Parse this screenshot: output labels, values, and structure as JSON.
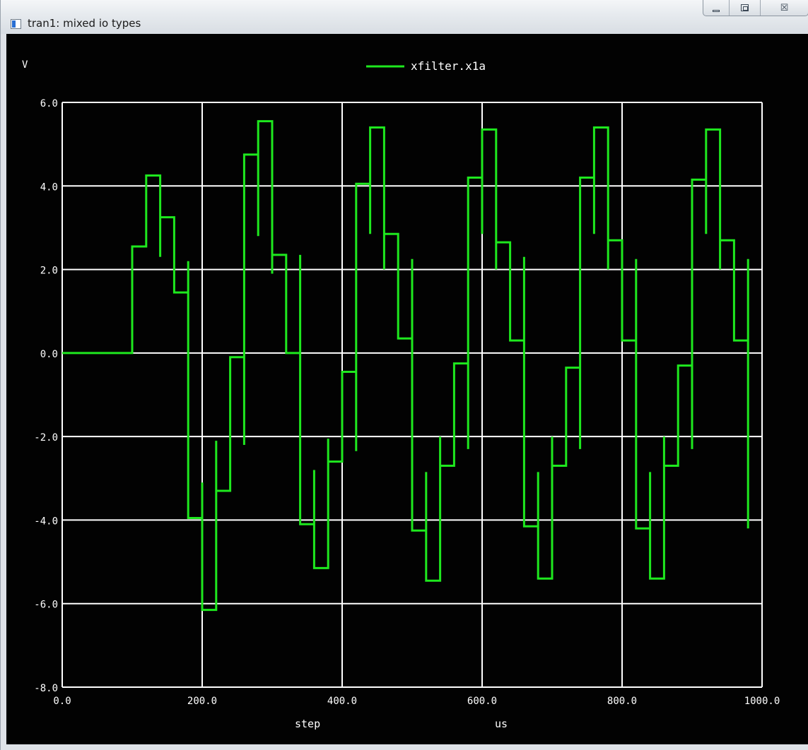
{
  "window": {
    "title": "tran1: mixed io types",
    "controls": {
      "minimize_icon": "minimize-icon",
      "maximize_icon": "restore-icon",
      "close_glyph": "☒"
    }
  },
  "chart_data": {
    "type": "line",
    "title": "",
    "ylabel": "V",
    "xlabel_left": "step",
    "xlabel_right": "us",
    "xlim": [
      0,
      1000
    ],
    "ylim": [
      -8,
      6
    ],
    "grid": true,
    "legend_position": "top-center",
    "x_ticks": [
      0,
      200,
      400,
      600,
      800,
      1000
    ],
    "x_tick_labels": [
      "0.0",
      "200.0",
      "400.0",
      "600.0",
      "800.0",
      "1000.0"
    ],
    "y_ticks": [
      6,
      4,
      2,
      0,
      -2,
      -4,
      -6,
      -8
    ],
    "y_tick_labels": [
      "6.0",
      "4.0",
      "2.0",
      "0.0",
      "-2.0",
      "-4.0",
      "-6.0",
      "-8.0"
    ],
    "series": [
      {
        "name": "xfilter.x1a",
        "color": "#1ee81e",
        "x": [
          0,
          100,
          100,
          120,
          120,
          140,
          140,
          140,
          160,
          160,
          180,
          180,
          180,
          180,
          200,
          200,
          200,
          220,
          220,
          220,
          240,
          240,
          260,
          260,
          260,
          280,
          280,
          280,
          300,
          300,
          300,
          320,
          320,
          340,
          340,
          340,
          360,
          360,
          360,
          380,
          380,
          380,
          400,
          400,
          420,
          420,
          420,
          440,
          440,
          440,
          460,
          460,
          460,
          480,
          480,
          500,
          500,
          500,
          520,
          520,
          520,
          540,
          540,
          540,
          560,
          560,
          580,
          580,
          580,
          600,
          600,
          600,
          620,
          620,
          620,
          640,
          640,
          660,
          660,
          660,
          680,
          680,
          680,
          700,
          700,
          700,
          720,
          720,
          740,
          740,
          740,
          760,
          760,
          760,
          780,
          780,
          780,
          800,
          800,
          820,
          820,
          820,
          840,
          840,
          840,
          860,
          860,
          860,
          880,
          880,
          900,
          900,
          900,
          920,
          920,
          920,
          940,
          940,
          940,
          960,
          960,
          980,
          980,
          980
        ],
        "y": [
          0,
          0,
          2.55,
          2.55,
          4.25,
          4.25,
          2.3,
          3.25,
          3.25,
          1.45,
          1.45,
          2.2,
          -3.95,
          -3.95,
          -3.95,
          -3.1,
          -6.15,
          -6.15,
          -2.1,
          -3.3,
          -3.3,
          -0.1,
          -0.1,
          -2.2,
          4.75,
          4.75,
          2.8,
          5.55,
          5.55,
          1.9,
          2.35,
          2.35,
          0,
          0,
          2.35,
          -4.1,
          -4.1,
          -2.8,
          -5.15,
          -5.15,
          -2.05,
          -2.6,
          -2.6,
          -0.45,
          -0.45,
          -2.35,
          4.05,
          4.05,
          2.85,
          5.4,
          5.4,
          2.0,
          2.85,
          2.85,
          0.35,
          0.35,
          2.25,
          -4.25,
          -4.25,
          -2.85,
          -5.45,
          -5.45,
          -2.0,
          -2.7,
          -2.7,
          -0.25,
          -0.25,
          -2.3,
          4.2,
          4.2,
          2.85,
          5.35,
          5.35,
          2.0,
          2.65,
          2.65,
          0.3,
          0.3,
          2.3,
          -4.15,
          -4.15,
          -2.85,
          -5.4,
          -5.4,
          -2.0,
          -2.7,
          -2.7,
          -0.35,
          -0.35,
          -2.3,
          4.2,
          4.2,
          2.85,
          5.4,
          5.4,
          2.0,
          2.7,
          2.7,
          0.3,
          0.3,
          2.25,
          -4.2,
          -4.2,
          -2.85,
          -5.4,
          -5.4,
          -2.0,
          -2.7,
          -2.7,
          -0.3,
          -0.3,
          -2.3,
          4.15,
          4.15,
          2.85,
          5.35,
          5.35,
          2.0,
          2.7,
          2.7,
          0.3,
          0.3,
          2.25,
          -4.2
        ]
      }
    ]
  }
}
